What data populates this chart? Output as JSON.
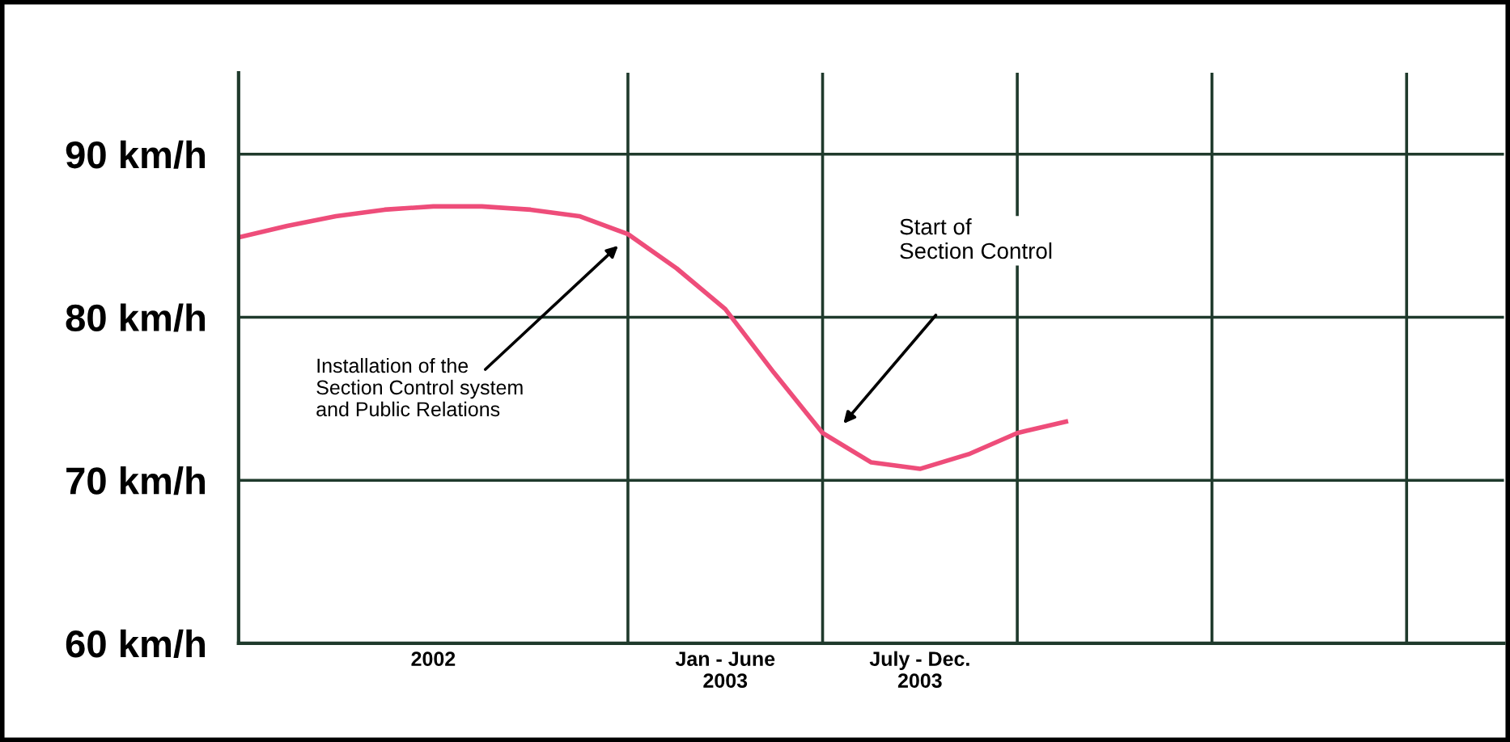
{
  "chart_data": {
    "type": "line",
    "categories": [
      null,
      null,
      null,
      null,
      "2002",
      null,
      null,
      null,
      null,
      null,
      "Jan - June\n2003",
      null,
      null,
      null,
      "July - Dec.\n2003",
      null,
      null,
      null,
      null,
      null,
      null,
      null,
      null,
      null,
      null,
      null,
      null
    ],
    "series": [
      {
        "color": "#ee4d7a",
        "values": [
          84.9,
          85.6,
          86.2,
          86.6,
          86.8,
          86.8,
          86.6,
          86.2,
          85.1,
          83.0,
          80.5,
          76.6,
          72.9,
          71.1,
          70.7,
          71.6,
          72.9,
          73.6,
          null,
          null,
          null,
          null,
          null,
          null,
          null,
          null,
          null
        ]
      }
    ],
    "ylim": [
      60,
      95
    ],
    "yticks": [
      {
        "value": 60,
        "label": "60 km/h"
      },
      {
        "value": 70,
        "label": "70 km/h"
      },
      {
        "value": 80,
        "label": "80 km/h"
      },
      {
        "value": 90,
        "label": "90 km/h"
      }
    ],
    "grid": true,
    "marker": "none",
    "line_style": "solid",
    "annotations": [
      "Installation of the\nSection Control system\nand Public Relations",
      "Start of\nSection Control"
    ]
  }
}
